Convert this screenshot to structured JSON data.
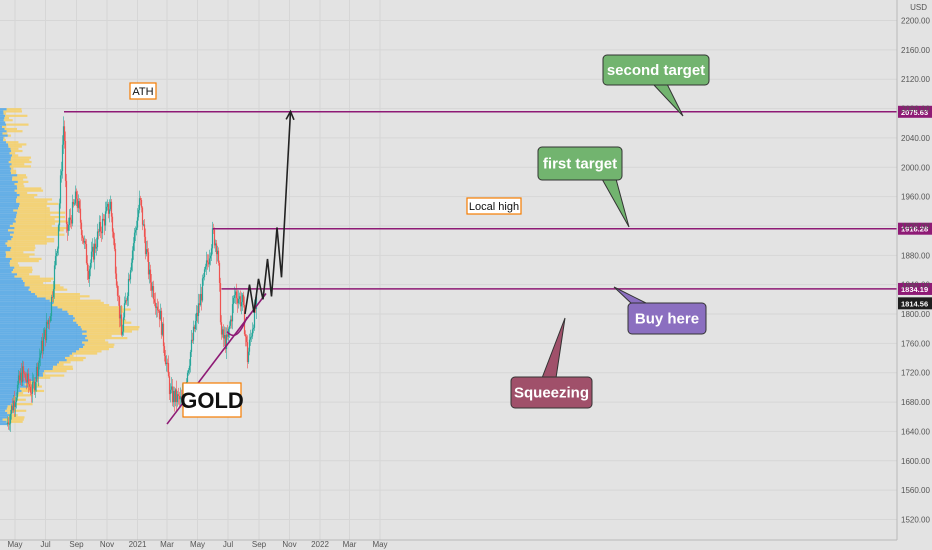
{
  "chart_data": {
    "type": "candlestick",
    "symbol": "GOLD",
    "currency": "USD",
    "y_ticks": [
      1520,
      1560,
      1600,
      1640,
      1680,
      1720,
      1760,
      1800,
      1840,
      1880,
      1920,
      1960,
      2000,
      2040,
      2080,
      2120,
      2160,
      2200
    ],
    "y_tick_labels": [
      "1520.00",
      "1560.00",
      "1600.00",
      "1640.00",
      "1680.00",
      "1720.00",
      "1760.00",
      "1800.00",
      "1840.00",
      "1880.00",
      "1920.00",
      "1960.00",
      "2000.00",
      "2040.00",
      "2080.00",
      "2120.00",
      "2160.00",
      "2200.00"
    ],
    "ylim": [
      1492,
      2228
    ],
    "x_ticks": [
      "May",
      "Jul",
      "Sep",
      "Nov",
      "2021",
      "Mar",
      "May",
      "Jul",
      "Sep",
      "Nov",
      "2022",
      "Mar",
      "May"
    ],
    "x_range": [
      "2020-04",
      "2022-05"
    ],
    "price_path": [
      [
        "2020-04-15",
        1650
      ],
      [
        "2020-05-15",
        1720
      ],
      [
        "2020-06-05",
        1695
      ],
      [
        "2020-06-20",
        1745
      ],
      [
        "2020-07-10",
        1800
      ],
      [
        "2020-07-25",
        1900
      ],
      [
        "2020-08-07",
        2070
      ],
      [
        "2020-08-12",
        1910
      ],
      [
        "2020-09-01",
        1960
      ],
      [
        "2020-09-25",
        1860
      ],
      [
        "2020-10-15",
        1910
      ],
      [
        "2020-11-08",
        1950
      ],
      [
        "2020-11-30",
        1770
      ],
      [
        "2020-12-20",
        1880
      ],
      [
        "2021-01-06",
        1955
      ],
      [
        "2021-01-25",
        1850
      ],
      [
        "2021-02-15",
        1800
      ],
      [
        "2021-03-08",
        1690
      ],
      [
        "2021-03-31",
        1680
      ],
      [
        "2021-04-25",
        1780
      ],
      [
        "2021-05-15",
        1850
      ],
      [
        "2021-06-01",
        1910
      ],
      [
        "2021-06-10",
        1890
      ],
      [
        "2021-06-18",
        1770
      ],
      [
        "2021-06-29",
        1760
      ],
      [
        "2021-07-15",
        1830
      ],
      [
        "2021-07-30",
        1815
      ],
      [
        "2021-08-09",
        1740
      ],
      [
        "2021-08-20",
        1790
      ],
      [
        "2021-08-27",
        1814.56
      ]
    ],
    "horizontal_levels": [
      {
        "price": 2075.63,
        "label": "2075.63",
        "from": "2020-08-07"
      },
      {
        "price": 1916.28,
        "label": "1916.28",
        "from": "2021-06-01"
      },
      {
        "price": 1834.19,
        "label": "1834.19",
        "from": "2021-06-18"
      }
    ],
    "current_price": {
      "price": 1814.56,
      "label": "1814.56"
    },
    "trendline": {
      "from": [
        "2021-03-01",
        1650
      ],
      "to": [
        "2021-09-15",
        1828
      ]
    },
    "projection_path": [
      [
        "2021-08-04",
        1800
      ],
      [
        "2021-08-13",
        1840
      ],
      [
        "2021-08-22",
        1802
      ],
      [
        "2021-08-31",
        1848
      ],
      [
        "2021-09-09",
        1820
      ],
      [
        "2021-09-18",
        1875
      ],
      [
        "2021-09-26",
        1824
      ],
      [
        "2021-10-07",
        1918
      ],
      [
        "2021-10-16",
        1850
      ],
      [
        "2021-11-03",
        2076
      ]
    ],
    "squeeze_curve": {
      "from": [
        "2021-06-29",
        1776
      ],
      "to": [
        "2021-08-08",
        1796
      ]
    },
    "annotations": {
      "ath": "ATH",
      "local_high": "Local high",
      "gold": "GOLD",
      "second_target": "second target",
      "first_target": "first target",
      "buy_here": "Buy here",
      "squeezing": "Squeezing"
    },
    "colors": {
      "background": "#e3e3e3",
      "up": "#26a69a",
      "down": "#ef5350",
      "level": "#8e1a75",
      "callout_green": "#72b46f",
      "callout_purple": "#8b6fc0",
      "callout_maroon": "#a0506a",
      "label_border": "#f57c00",
      "profile_blue": "#4fa6e6",
      "profile_yellow": "#f4cf6a"
    },
    "axis_unit": "USD",
    "grid": true
  }
}
